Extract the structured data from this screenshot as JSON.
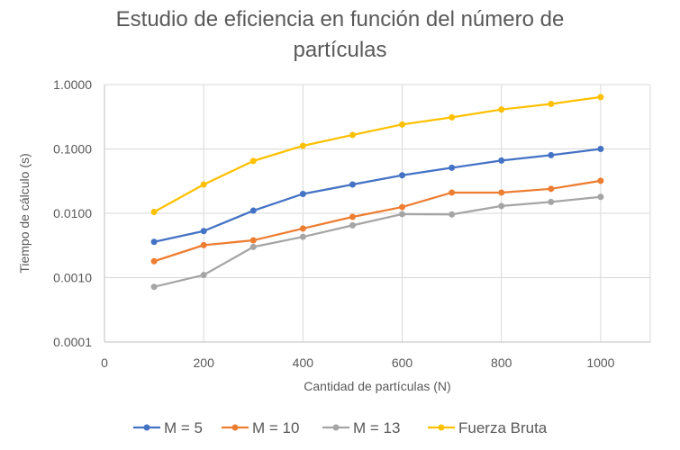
{
  "chart_data": {
    "type": "line",
    "title_line1": "Estudio de eficiencia en función del número de",
    "title_line2": "partículas",
    "xlabel": "Cantidad de partículas (N)",
    "ylabel": "Tiempo de cálculo (s)",
    "xlim": [
      0,
      1100
    ],
    "ylim": [
      0.0001,
      1
    ],
    "yscale": "log",
    "x_ticks": [
      0,
      200,
      400,
      600,
      800,
      1000
    ],
    "x_tick_labels": [
      "0",
      "200",
      "400",
      "600",
      "800",
      "1000"
    ],
    "y_ticks": [
      0.0001,
      0.001,
      0.01,
      0.1,
      1
    ],
    "y_tick_labels": [
      "0.0001",
      "0.0010",
      "0.0100",
      "0.1000",
      "1.0000"
    ],
    "grid": true,
    "legend_position": "bottom",
    "x": [
      100,
      200,
      300,
      400,
      500,
      600,
      700,
      800,
      900,
      1000
    ],
    "series": [
      {
        "name": "M = 5",
        "color": "#4472C4",
        "values": [
          0.0036,
          0.0053,
          0.011,
          0.02,
          0.028,
          0.039,
          0.051,
          0.066,
          0.08,
          0.1
        ]
      },
      {
        "name": "M = 10",
        "color": "#ED7D31",
        "values": [
          0.0018,
          0.0032,
          0.0038,
          0.0058,
          0.0088,
          0.0125,
          0.021,
          0.021,
          0.024,
          0.032
        ]
      },
      {
        "name": "M = 13",
        "color": "#A5A5A5",
        "values": [
          0.00072,
          0.0011,
          0.003,
          0.0043,
          0.0065,
          0.0097,
          0.0096,
          0.013,
          0.015,
          0.018
        ]
      },
      {
        "name": "Fuerza Bruta",
        "color": "#FFC000",
        "values": [
          0.0105,
          0.028,
          0.065,
          0.112,
          0.165,
          0.24,
          0.31,
          0.41,
          0.5,
          0.64
        ]
      }
    ]
  }
}
